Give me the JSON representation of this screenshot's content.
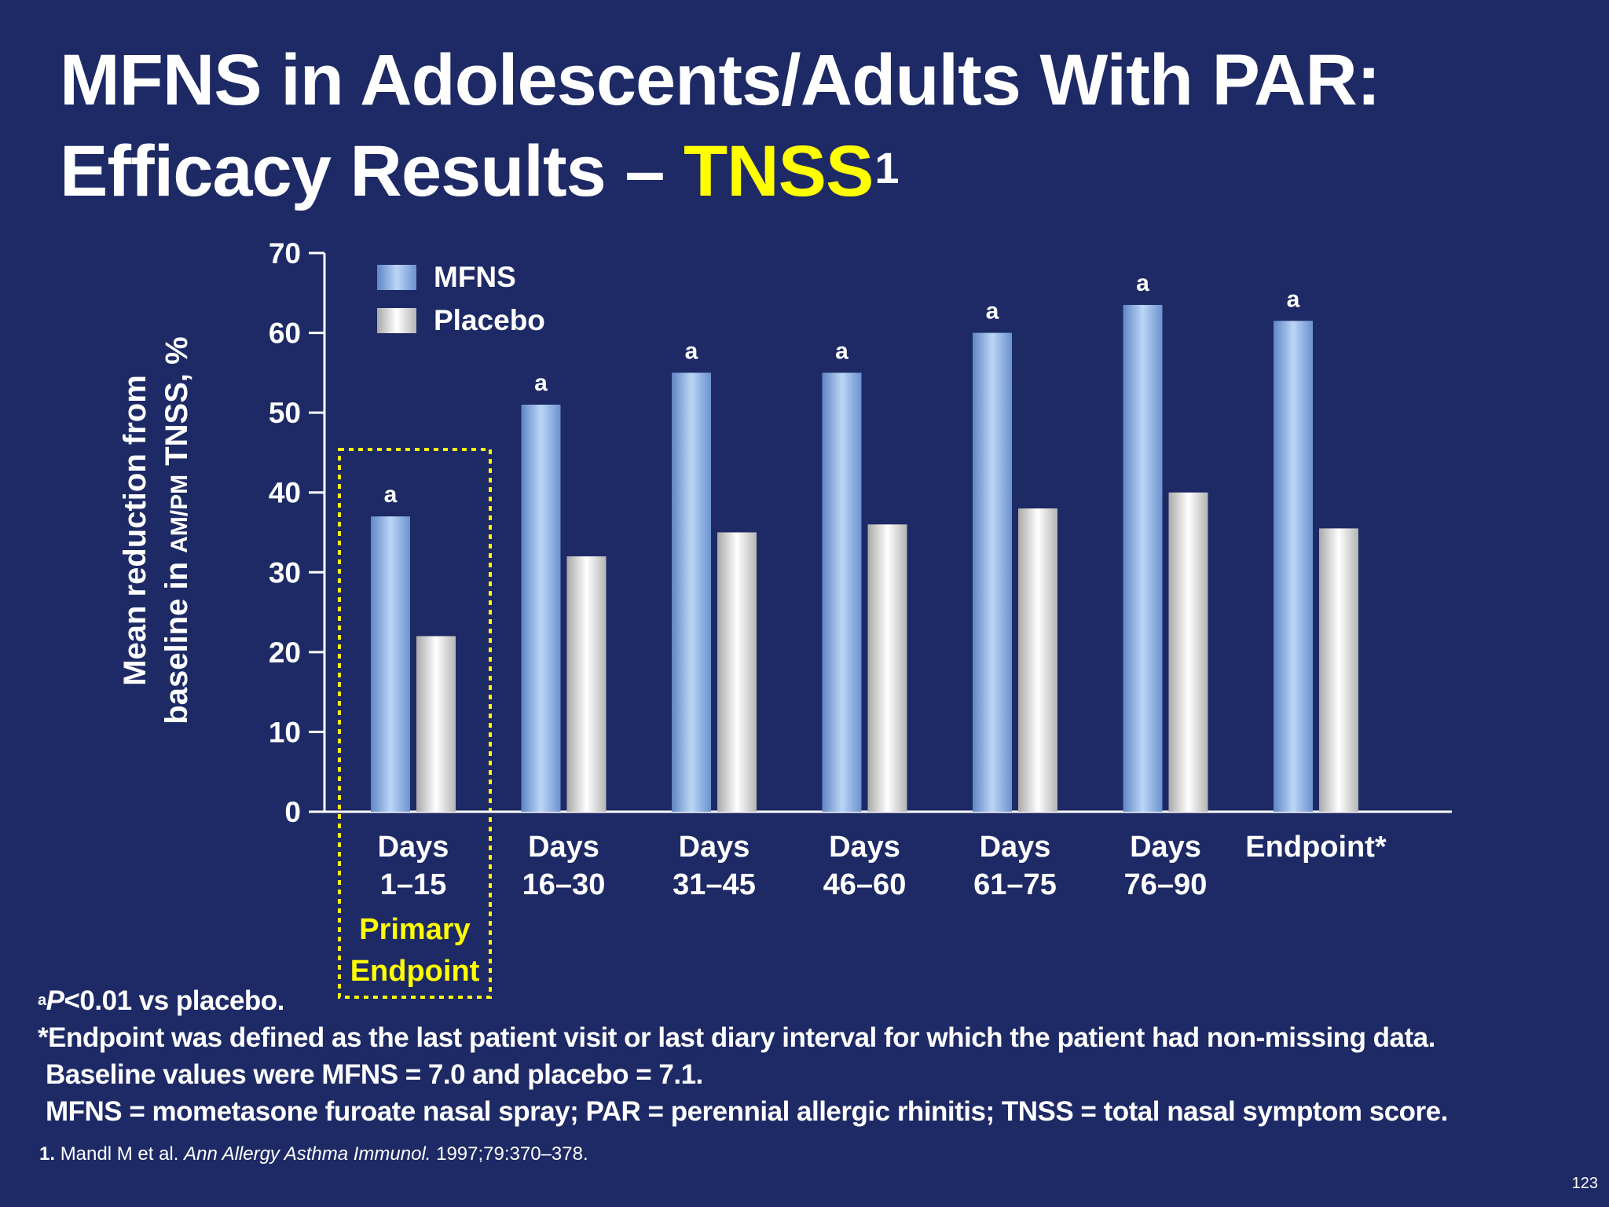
{
  "slide": {
    "title_line1": "MFNS in Adolescents/Adults With PAR:",
    "title_line2_prefix": "Efficacy Results – ",
    "title_line2_highlight": "TNSS",
    "title_superscript": "1",
    "page_number": "123"
  },
  "footnotes": {
    "sig_marker": "a",
    "sig_italic": "P",
    "sig_text": "<0.01 vs placebo.",
    "endpoint_note": "*Endpoint was defined as the last patient visit or last diary interval for which the patient had non-missing data.",
    "baseline_note": "Baseline values were MFNS = 7.0 and placebo = 7.1.",
    "abbreviations": "MFNS = mometasone furoate nasal spray; PAR = perennial allergic rhinitis; TNSS = total nasal symptom score.",
    "ref_number": "1.",
    "ref_authors": "Mandl M et al.",
    "ref_journal": "Ann Allergy Asthma Immunol.",
    "ref_details": "1997;79:370–378."
  },
  "chart_data": {
    "type": "bar",
    "ylabel_line1": "Mean reduction from",
    "ylabel_line2_a": "baseline in ",
    "ylabel_line2_small": "AM/PM",
    "ylabel_line2_b": " TNSS, %",
    "ylim": [
      0,
      70
    ],
    "yticks": [
      0,
      10,
      20,
      30,
      40,
      50,
      60,
      70
    ],
    "categories": [
      [
        "Days",
        "1–15"
      ],
      [
        "Days",
        "16–30"
      ],
      [
        "Days",
        "31–45"
      ],
      [
        "Days",
        "46–60"
      ],
      [
        "Days",
        "61–75"
      ],
      [
        "Days",
        "76–90"
      ],
      [
        "Endpoint*"
      ]
    ],
    "series": [
      {
        "name": "MFNS",
        "values": [
          37,
          51,
          55,
          55,
          60,
          63.5,
          61.5
        ]
      },
      {
        "name": "Placebo",
        "values": [
          22,
          32,
          35,
          36,
          38,
          40,
          35.5
        ]
      }
    ],
    "significance_labels": [
      "a",
      "a",
      "a",
      "a",
      "a",
      "a",
      "a"
    ],
    "highlight": {
      "category_index": 0,
      "label_line1": "Primary",
      "label_line2": "Endpoint",
      "color": "#ffff00"
    },
    "legend": "top-left",
    "grid": false,
    "colors": {
      "MFNS": "#8ab4e6",
      "Placebo": "#e8e8e8",
      "axis": "#ffffff",
      "highlight": "#ffff00"
    }
  }
}
